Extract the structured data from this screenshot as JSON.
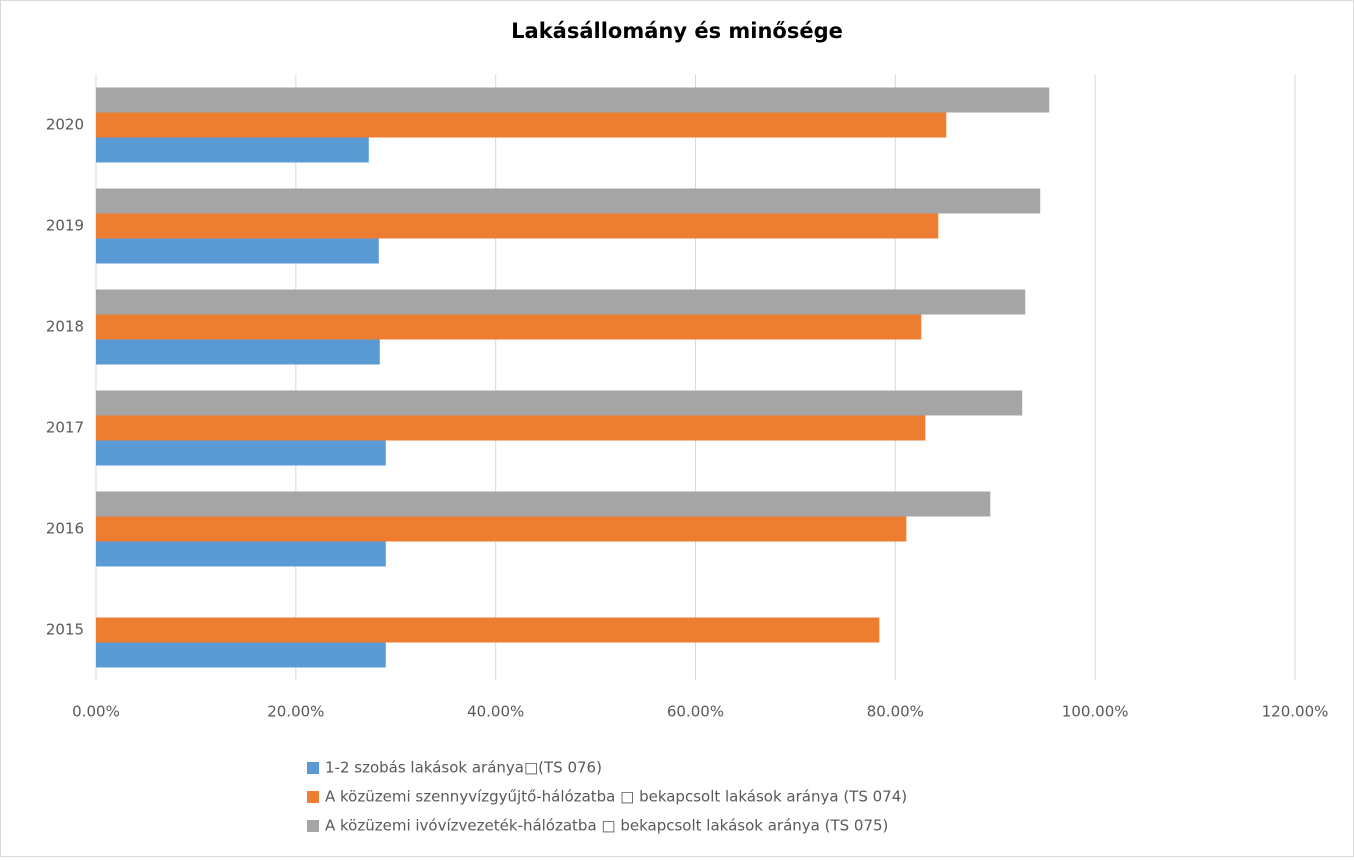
{
  "chart_data": {
    "type": "bar",
    "orientation": "horizontal",
    "title": "Lakásállomány és minősége",
    "categories": [
      "2015",
      "2016",
      "2017",
      "2018",
      "2019",
      "2020"
    ],
    "series": [
      {
        "name": "1-2 szobás lakások aránya□(TS 076)",
        "color": "#5b9bd5",
        "values": [
          29.0,
          29.0,
          29.0,
          28.4,
          28.3,
          27.3
        ]
      },
      {
        "name": "A közüzemi szennyvízgyűjtő-hálózatba □ bekapcsolt lakások aránya (TS 074)",
        "color": "#ed7d31",
        "values": [
          78.4,
          81.1,
          83.0,
          82.6,
          84.3,
          85.1
        ]
      },
      {
        "name": "A közüzemi ivóvízvezeték-hálózatba □ bekapcsolt lakások aránya (TS 075)",
        "color": "#a5a5a5",
        "values": [
          null,
          89.5,
          92.7,
          93.0,
          94.5,
          95.4
        ]
      }
    ],
    "xlim": [
      0,
      120
    ],
    "xticks": [
      {
        "value": 0,
        "label": "0.00%"
      },
      {
        "value": 20,
        "label": "20.00%"
      },
      {
        "value": 40,
        "label": "40.00%"
      },
      {
        "value": 60,
        "label": "60.00%"
      },
      {
        "value": 80,
        "label": "80.00%"
      },
      {
        "value": 100,
        "label": "100.00%"
      },
      {
        "value": 120,
        "label": "120.00%"
      }
    ],
    "grid": true,
    "legend": "bottom"
  }
}
